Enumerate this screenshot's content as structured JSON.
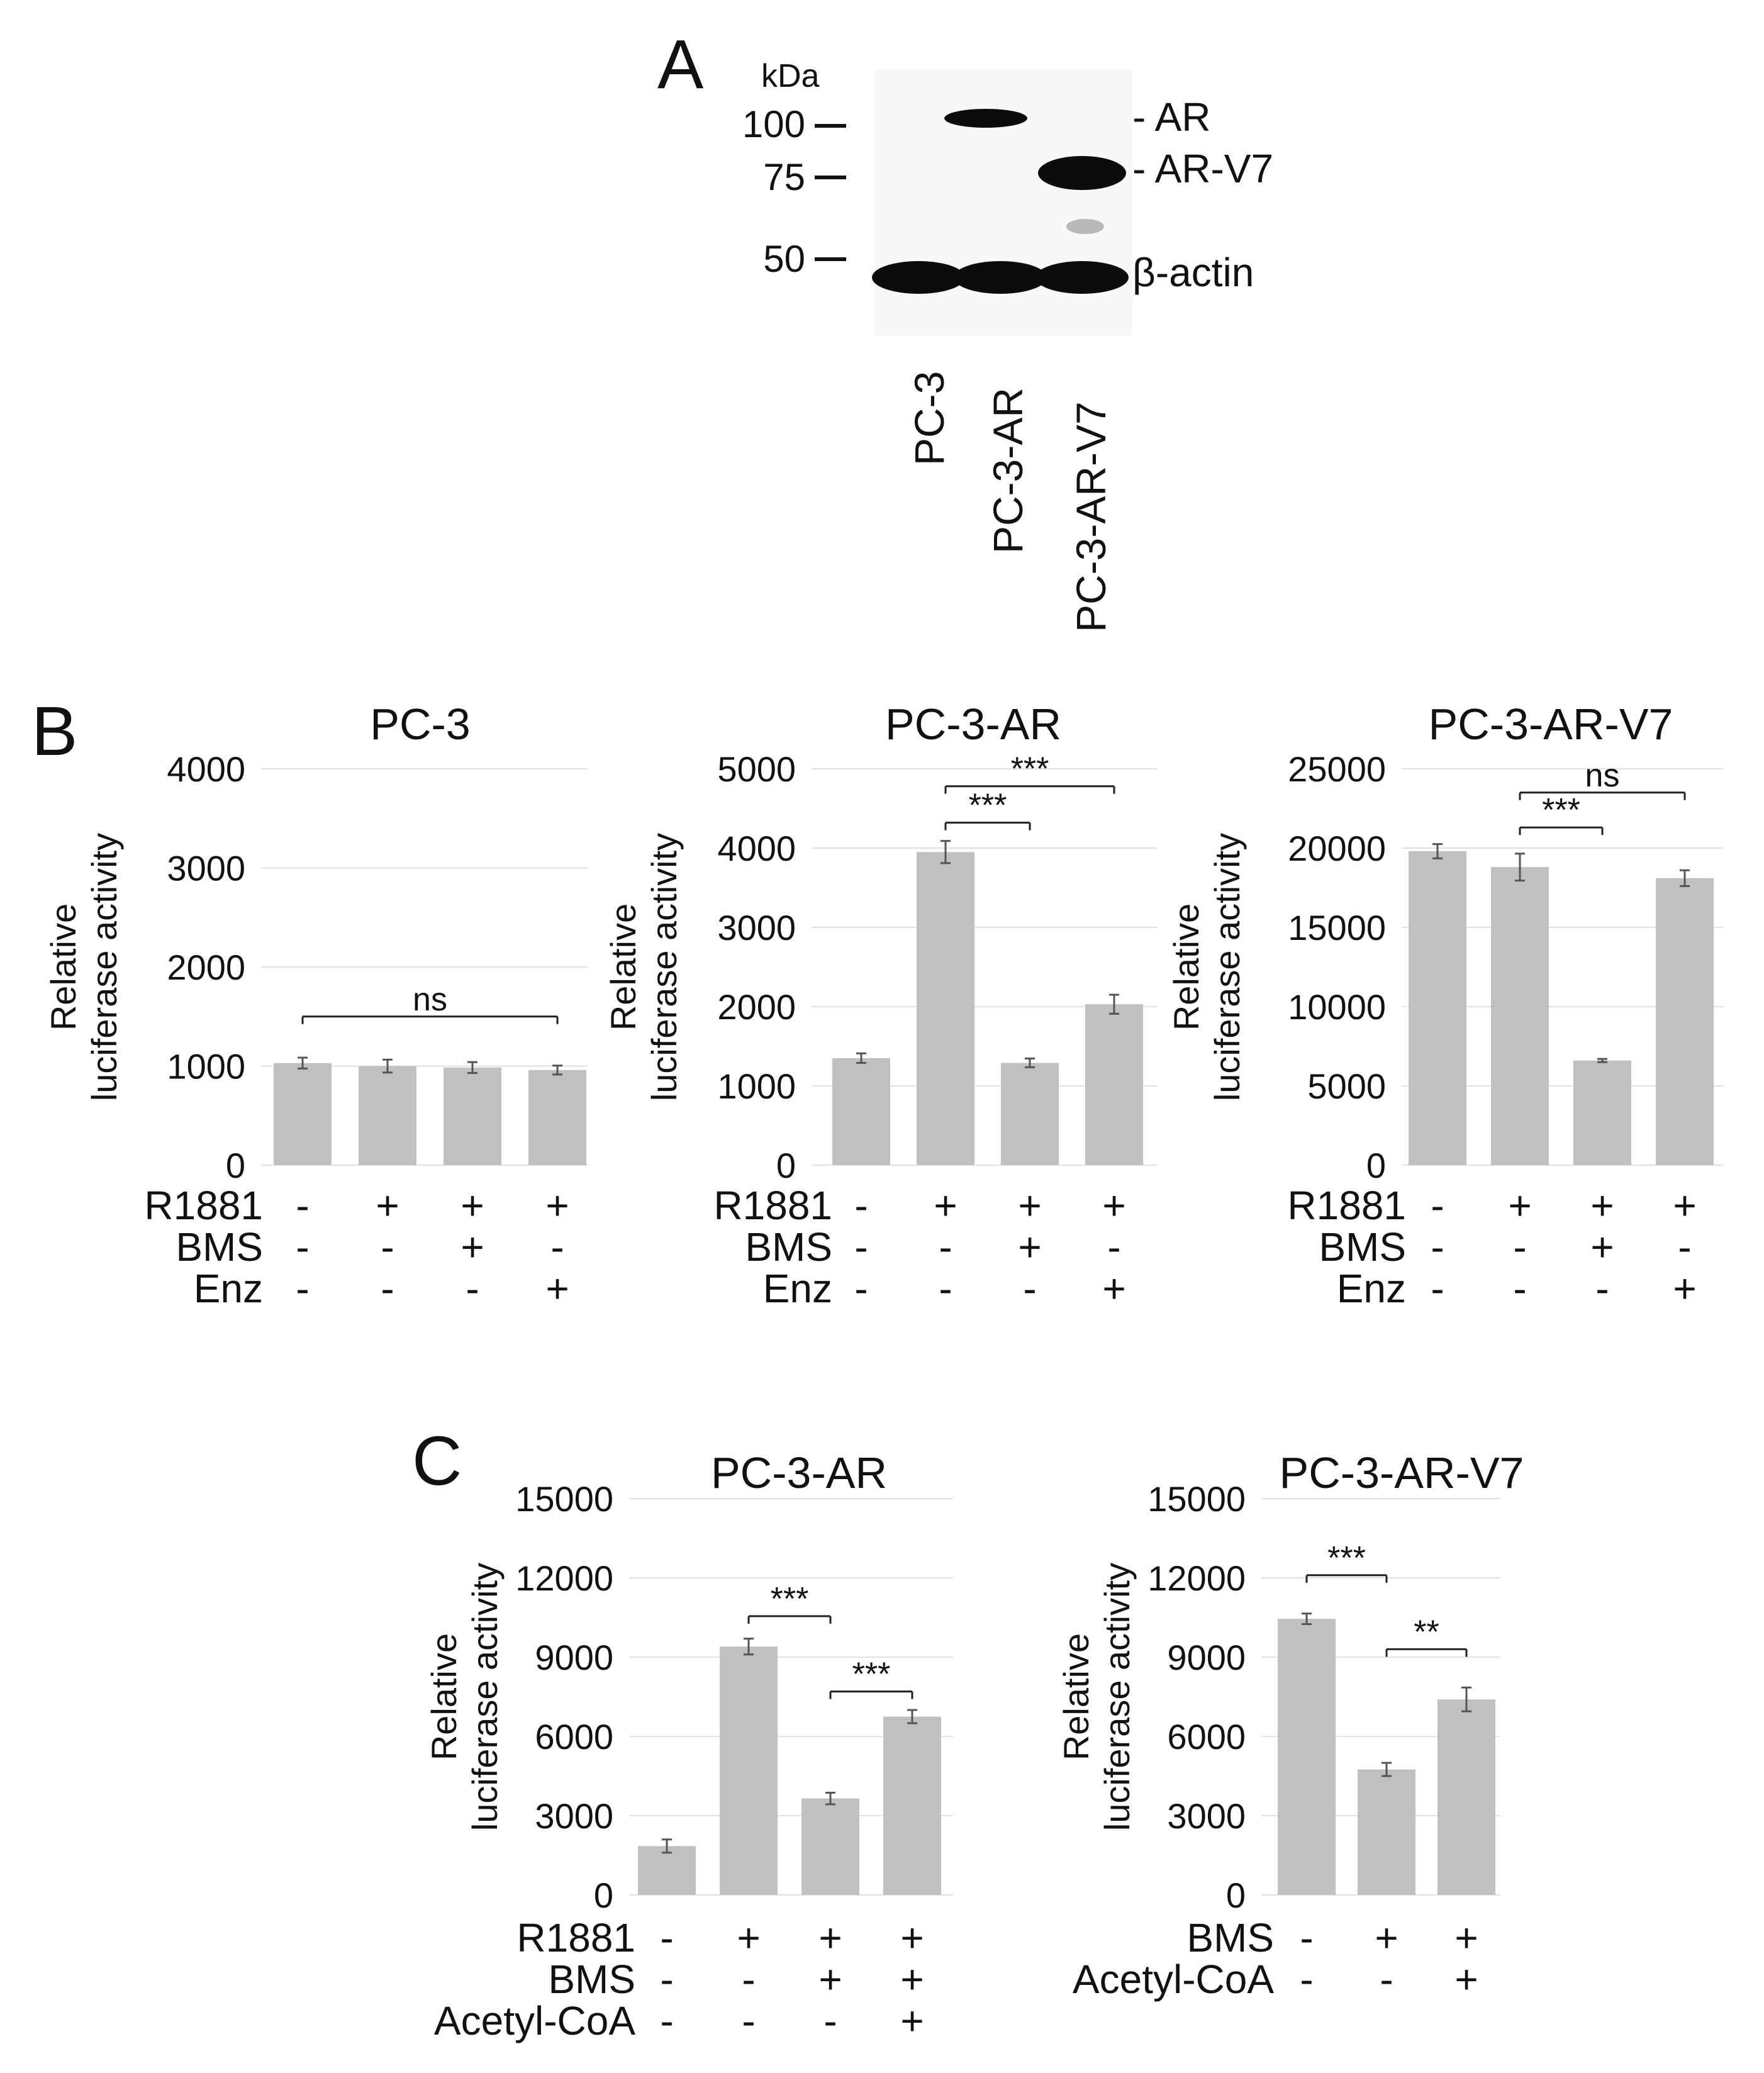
{
  "panels": {
    "A": "A",
    "B": "B",
    "C": "C"
  },
  "blot": {
    "unit_label": "kDa",
    "markers": [
      "100",
      "75",
      "50"
    ],
    "band_labels": [
      "- AR",
      "- AR-V7",
      "β-actin"
    ],
    "lanes": [
      "PC-3",
      "PC-3-AR",
      "PC-3-AR-V7"
    ]
  },
  "colors": {
    "bar": "#c0c0c0",
    "error_bar": "#555555",
    "gridline": "#e3e3e3",
    "text": "#111111",
    "blot_background": "#f8f8f8",
    "band": "#0c0c0c"
  },
  "chart_data": [
    {
      "type": "bar",
      "panel": "B",
      "title": "PC-3",
      "ylabel": [
        "Relative",
        "luciferase activity"
      ],
      "ylim": [
        0,
        4000
      ],
      "yticks": [
        "0",
        "1000",
        "2000",
        "3000",
        "4000"
      ],
      "values": [
        1030,
        1000,
        985,
        960
      ],
      "errors": [
        55,
        65,
        55,
        45
      ],
      "treatments": [
        {
          "name": "R1881",
          "signs": [
            "-",
            "+",
            "+",
            "+"
          ]
        },
        {
          "name": "BMS",
          "signs": [
            "-",
            "-",
            "+",
            "-"
          ]
        },
        {
          "name": "Enz",
          "signs": [
            "-",
            "-",
            "-",
            "+"
          ]
        }
      ],
      "significance": [
        {
          "from": 0,
          "to": 3,
          "label": "ns",
          "y": 1500
        }
      ]
    },
    {
      "type": "bar",
      "panel": "B",
      "title": "PC-3-AR",
      "ylabel": [
        "Relative",
        "luciferase activity"
      ],
      "ylim": [
        0,
        5000
      ],
      "yticks": [
        "0",
        "1000",
        "2000",
        "3000",
        "4000",
        "5000"
      ],
      "values": [
        1350,
        3950,
        1290,
        2030
      ],
      "errors": [
        60,
        140,
        55,
        120
      ],
      "treatments": [
        {
          "name": "R1881",
          "signs": [
            "-",
            "+",
            "+",
            "+"
          ]
        },
        {
          "name": "BMS",
          "signs": [
            "-",
            "-",
            "+",
            "-"
          ]
        },
        {
          "name": "Enz",
          "signs": [
            "-",
            "-",
            "-",
            "+"
          ]
        }
      ],
      "significance": [
        {
          "from": 1,
          "to": 2,
          "label": "***",
          "y": 4320
        },
        {
          "from": 1,
          "to": 3,
          "label": "***",
          "y": 4780
        }
      ]
    },
    {
      "type": "bar",
      "panel": "B",
      "title": "PC-3-AR-V7",
      "ylabel": [
        "Relative",
        "luciferase activity"
      ],
      "ylim": [
        0,
        25000
      ],
      "yticks": [
        "0",
        "5000",
        "10000",
        "15000",
        "20000",
        "25000"
      ],
      "values": [
        19800,
        18800,
        6600,
        18100
      ],
      "errors": [
        450,
        850,
        100,
        500
      ],
      "treatments": [
        {
          "name": "R1881",
          "signs": [
            "-",
            "+",
            "+",
            "+"
          ]
        },
        {
          "name": "BMS",
          "signs": [
            "-",
            "-",
            "+",
            "-"
          ]
        },
        {
          "name": "Enz",
          "signs": [
            "-",
            "-",
            "-",
            "+"
          ]
        }
      ],
      "significance": [
        {
          "from": 1,
          "to": 2,
          "label": "***",
          "y": 21300
        },
        {
          "from": 1,
          "to": 3,
          "label": "ns",
          "y": 23500
        }
      ]
    },
    {
      "type": "bar",
      "panel": "C",
      "title": "PC-3-AR",
      "ylabel": [
        "Relative",
        "luciferase activity"
      ],
      "ylim": [
        0,
        15000
      ],
      "yticks": [
        "0",
        "3000",
        "6000",
        "9000",
        "12000",
        "15000"
      ],
      "values": [
        1850,
        9400,
        3650,
        6750
      ],
      "errors": [
        250,
        300,
        220,
        250
      ],
      "treatments": [
        {
          "name": "R1881",
          "signs": [
            "-",
            "+",
            "+",
            "+"
          ]
        },
        {
          "name": "BMS",
          "signs": [
            "-",
            "-",
            "+",
            "+"
          ]
        },
        {
          "name": "Acetyl-CoA",
          "signs": [
            "-",
            "-",
            "-",
            "+"
          ]
        }
      ],
      "significance": [
        {
          "from": 1,
          "to": 2,
          "label": "***",
          "y": 10550
        },
        {
          "from": 2,
          "to": 3,
          "label": "***",
          "y": 7700
        }
      ]
    },
    {
      "type": "bar",
      "panel": "C",
      "title": "PC-3-AR-V7",
      "ylabel": [
        "Relative",
        "luciferase activity"
      ],
      "ylim": [
        0,
        15000
      ],
      "yticks": [
        "0",
        "3000",
        "6000",
        "9000",
        "12000",
        "15000"
      ],
      "values": [
        10450,
        4750,
        7400
      ],
      "errors": [
        200,
        250,
        450
      ],
      "treatments": [
        {
          "name": "BMS",
          "signs": [
            "-",
            "+",
            "+"
          ]
        },
        {
          "name": "Acetyl-CoA",
          "signs": [
            "-",
            "-",
            "+"
          ]
        }
      ],
      "significance": [
        {
          "from": 0,
          "to": 1,
          "label": "***",
          "y": 12100
        },
        {
          "from": 1,
          "to": 2,
          "label": "**",
          "y": 9300
        }
      ]
    }
  ]
}
